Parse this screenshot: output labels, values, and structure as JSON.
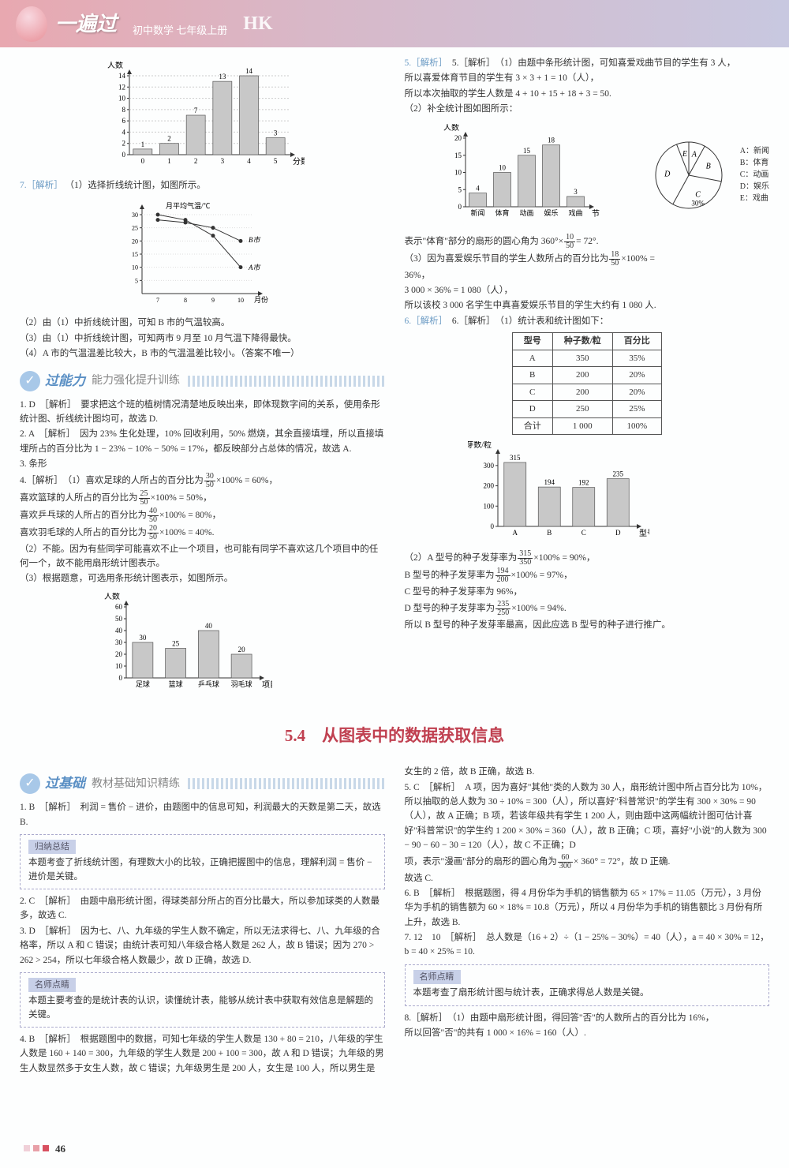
{
  "header": {
    "title": "一遍过",
    "subtitle": "初中数学 七年级上册",
    "edition": "HK"
  },
  "chart1": {
    "ylabel": "人数",
    "xlabel": "分数",
    "xticks": [
      "0",
      "1",
      "2",
      "3",
      "4",
      "5"
    ],
    "yticks": [
      0,
      2,
      4,
      6,
      8,
      10,
      12,
      14
    ],
    "values": [
      1,
      2,
      7,
      13,
      14,
      3
    ],
    "value_labels": [
      "1",
      "2",
      "7",
      "13",
      "14",
      "3"
    ],
    "bar_color": "#c8c8c8",
    "border_color": "#555",
    "grid_color": "#999"
  },
  "q7": {
    "label": "7.［解析］",
    "line1": "（1）选择折线统计图，如图所示。",
    "chart": {
      "ylabel": "月平均气温/℃",
      "xlabel": "月份",
      "xticks": [
        "7",
        "8",
        "9",
        "10"
      ],
      "yticks": [
        "5",
        "10",
        "15",
        "20",
        "25",
        "30"
      ],
      "seriesA": {
        "label": "A市",
        "points": [
          [
            7,
            30
          ],
          [
            8,
            28
          ],
          [
            9,
            22
          ],
          [
            10,
            10
          ]
        ],
        "color": "#333"
      },
      "seriesB": {
        "label": "B市",
        "points": [
          [
            7,
            28
          ],
          [
            8,
            27
          ],
          [
            9,
            25
          ],
          [
            10,
            20
          ]
        ],
        "color": "#333"
      }
    },
    "line2": "（2）由（1）中折线统计图，可知 B 市的气温较高。",
    "line3": "（3）由（1）中折线统计图，可知两市 9 月至 10 月气温下降得最快。",
    "line4": "（4）A 市的气温温差比较大，B 市的气温温差比较小。（答案不唯一）"
  },
  "ability": {
    "main": "过能力",
    "sub": "能力强化提升训练",
    "q1": "1. D　［解析］　要求把这个班的植树情况清楚地反映出来，即体现数字间的关系，使用条形统计图、折线统计图均可，故选 D.",
    "q2": "2. A　［解析］　因为 23% 生化处理，10% 回收利用，50% 燃烧，其余直接填埋，所以直接填埋所占的百分比为 1 − 23% − 10% − 50% = 17%，都反映部分占总体的情况，故选 A.",
    "q3": "3. 条形",
    "q4a": "4.［解析］　（1）喜欢足球的人所占的百分比为",
    "q4a_frac_n": "30",
    "q4a_frac_d": "50",
    "q4a_tail": "×100% = 60%，",
    "q4b": "喜欢篮球的人所占的百分比为",
    "q4b_frac_n": "25",
    "q4b_frac_d": "50",
    "q4b_tail": "×100% = 50%，",
    "q4c": "喜欢乒乓球的人所占的百分比为",
    "q4c_frac_n": "40",
    "q4c_frac_d": "50",
    "q4c_tail": "×100% = 80%，",
    "q4d": "喜欢羽毛球的人所占的百分比为",
    "q4d_frac_n": "20",
    "q4d_frac_d": "50",
    "q4d_tail": "×100% = 40%.",
    "q4e": "（2）不能。因为有些同学可能喜欢不止一个项目，也可能有同学不喜欢这几个项目中的任何一个，故不能用扇形统计图表示。",
    "q4f": "（3）根据题意，可选用条形统计图表示，如图所示。"
  },
  "chart3": {
    "ylabel": "人数",
    "xlabel": "项目",
    "yticks": [
      0,
      10,
      20,
      30,
      40,
      50,
      60
    ],
    "cats": [
      "足球",
      "篮球",
      "乒乓球",
      "羽毛球"
    ],
    "values": [
      30,
      25,
      40,
      20
    ],
    "labels": [
      "30",
      "25",
      "40",
      "20"
    ],
    "bar_color": "#c8c8c8"
  },
  "right5": {
    "head": "5.［解析］　（1）由题中条形统计图，可知喜爱戏曲节目的学生有 3 人，",
    "l2": "所以喜爱体育节目的学生有 3 × 3 + 1 = 10（人），",
    "l3": "所以本次抽取的学生人数是 4 + 10 + 15 + 18 + 3 = 50.",
    "l4": "（2）补全统计图如图所示：",
    "chart": {
      "ylabel": "人数",
      "xlabel": "节目类别",
      "cats": [
        "新闻",
        "体育",
        "动画",
        "娱乐",
        "戏曲"
      ],
      "values": [
        4,
        10,
        15,
        18,
        3
      ],
      "labels": [
        "4",
        "10",
        "15",
        "18",
        "3"
      ],
      "yticks": [
        0,
        5,
        10,
        15,
        20
      ],
      "bar_color": "#c8c8c8"
    },
    "pie": {
      "legend": {
        "A": "A：新闻",
        "B": "B：体育",
        "C": "C：动画",
        "D": "D：娱乐",
        "E": "E：戏曲"
      },
      "sectors": [
        {
          "label": "A",
          "pct": 8
        },
        {
          "label": "B",
          "pct": 20
        },
        {
          "label": "C",
          "pct": 30,
          "show_pct": "30%"
        },
        {
          "label": "D",
          "pct": 36
        },
        {
          "label": "E",
          "pct": 6
        }
      ]
    },
    "l5a": "表示\"体育\"部分的扇形的圆心角为 360°×",
    "l5_frac_n": "10",
    "l5_frac_d": "50",
    "l5b": "= 72°.",
    "l6a": "（3）因为喜爱娱乐节目的学生人数所占的百分比为",
    "l6_frac_n": "18",
    "l6_frac_d": "50",
    "l6b": "×100% =",
    "l7": "36%，",
    "l8": "3 000 × 36% = 1 080（人），",
    "l9": "所以该校 3 000 名学生中真喜爱娱乐节目的学生大约有 1 080 人."
  },
  "right6": {
    "head": "6.［解析］　（1）统计表和统计图如下：",
    "table": {
      "cols": [
        "型号",
        "种子数/粒",
        "百分比"
      ],
      "rows": [
        [
          "A",
          "350",
          "35%"
        ],
        [
          "B",
          "200",
          "20%"
        ],
        [
          "C",
          "200",
          "20%"
        ],
        [
          "D",
          "250",
          "25%"
        ],
        [
          "合计",
          "1 000",
          "100%"
        ]
      ]
    },
    "chart": {
      "ylabel": "发芽数/粒",
      "xlabel": "型号",
      "yticks": [
        0,
        100,
        200,
        300
      ],
      "cats": [
        "A",
        "B",
        "C",
        "D"
      ],
      "values": [
        315,
        194,
        192,
        235
      ],
      "labels": [
        "315",
        "194",
        "192",
        "235"
      ],
      "bar_color": "#c8c8c8"
    },
    "l2a": "（2）A 型号的种子发芽率为",
    "l2_n": "315",
    "l2_d": "350",
    "l2b": "×100% = 90%，",
    "l3a": "B 型号的种子发芽率为",
    "l3_n": "194",
    "l3_d": "200",
    "l3b": "×100% = 97%，",
    "l4": "C 型号的种子发芽率为 96%，",
    "l5a": "D 型号的种子发芽率为",
    "l5_n": "235",
    "l5_d": "250",
    "l5b": "×100% = 94%.",
    "l6": "所以 B 型号的种子发芽率最高，因此应选 B 型号的种子进行推广。"
  },
  "section54": "5.4　从图表中的数据获取信息",
  "basic": {
    "main": "过基础",
    "sub": "教材基础知识精练",
    "q1": "1. B　［解析］　利润 = 售价 − 进价，由题图中的信息可知，利润最大的天数是第二天，故选 B.",
    "box1_label": "归纳总结",
    "box1_text": "本题考查了折线统计图，有理数大小的比较，正确把握图中的信息，理解利润 = 售价 − 进价是关键。",
    "q2": "2. C　［解析］　由题中扇形统计图，得球类部分所占的百分比最大，所以参加球类的人数最多，故选 C.",
    "q3": "3. D　［解析］　因为七、八、九年级的学生人数不确定，所以无法求得七、八、九年级的合格率，所以 A 和 C 错误；由统计表可知八年级合格人数是 262 人，故 B 错误；因为 270 > 262 > 254，所以七年级合格人数最少，故 D 正确，故选 D.",
    "box2_label": "名师点睛",
    "box2_text": "本题主要考查的是统计表的认识，读懂统计表，能够从统计表中获取有效信息是解题的关键。",
    "q4": "4. B　［解析］　根据题图中的数据，可知七年级的学生人数是 130 + 80 = 210，八年级的学生人数是 160 + 140 = 300，九年级的学生人数是 200 + 100 = 300，故 A 和 D 错误；九年级的男生人数显然多于女生人数，故 C 错误；九年级男生是 200 人，女生是 100 人，所以男生是"
  },
  "bottom_right": {
    "q4tail": "女生的 2 倍，故 B 正确，故选 B.",
    "q5": "5. C　［解析］　A 项，因为喜好\"其他\"类的人数为 30 人，扇形统计图中所占百分比为 10%，所以抽取的总人数为 30 ÷ 10% = 300（人），所以喜好\"科普常识\"的学生有 300 × 30% = 90（人），故 A 正确；B 项，若该年级共有学生 1 200 人，则由题中这两幅统计图可估计喜好\"科普常识\"的学生约 1 200 × 30% = 360（人），故 B 正确；C 项，喜好\"小说\"的人数为 300 − 90 − 60 − 30 = 120（人），故 C 不正确；D",
    "q5b": "项，表示\"漫画\"部分的扇形的圆心角为",
    "q5_n": "60",
    "q5_d": "300",
    "q5tail": "× 360° = 72°，故 D 正确.",
    "q5c": "故选 C.",
    "q6": "6. B　［解析］　根据题图，得 4 月份华为手机的销售额为 65 × 17% = 11.05（万元），3 月份华为手机的销售额为 60 × 18% = 10.8（万元），所以 4 月份华为手机的销售额比 3 月份有所上升，故选 B.",
    "q7": "7. 12　10　［解析］　总人数是（16 + 2）÷（1 − 25% − 30%）= 40（人），a = 40 × 30% = 12，b = 40 × 25% = 10.",
    "box_label": "名师点睛",
    "box_text": "本题考查了扇形统计图与统计表，正确求得总人数是关键。",
    "q8": "8.［解析］　（1）由题中扇形统计图，得回答\"否\"的人数所占的百分比为 16%，",
    "q8b": "所以回答\"否\"的共有 1 000 × 16% = 160（人）."
  },
  "page_num": "46"
}
